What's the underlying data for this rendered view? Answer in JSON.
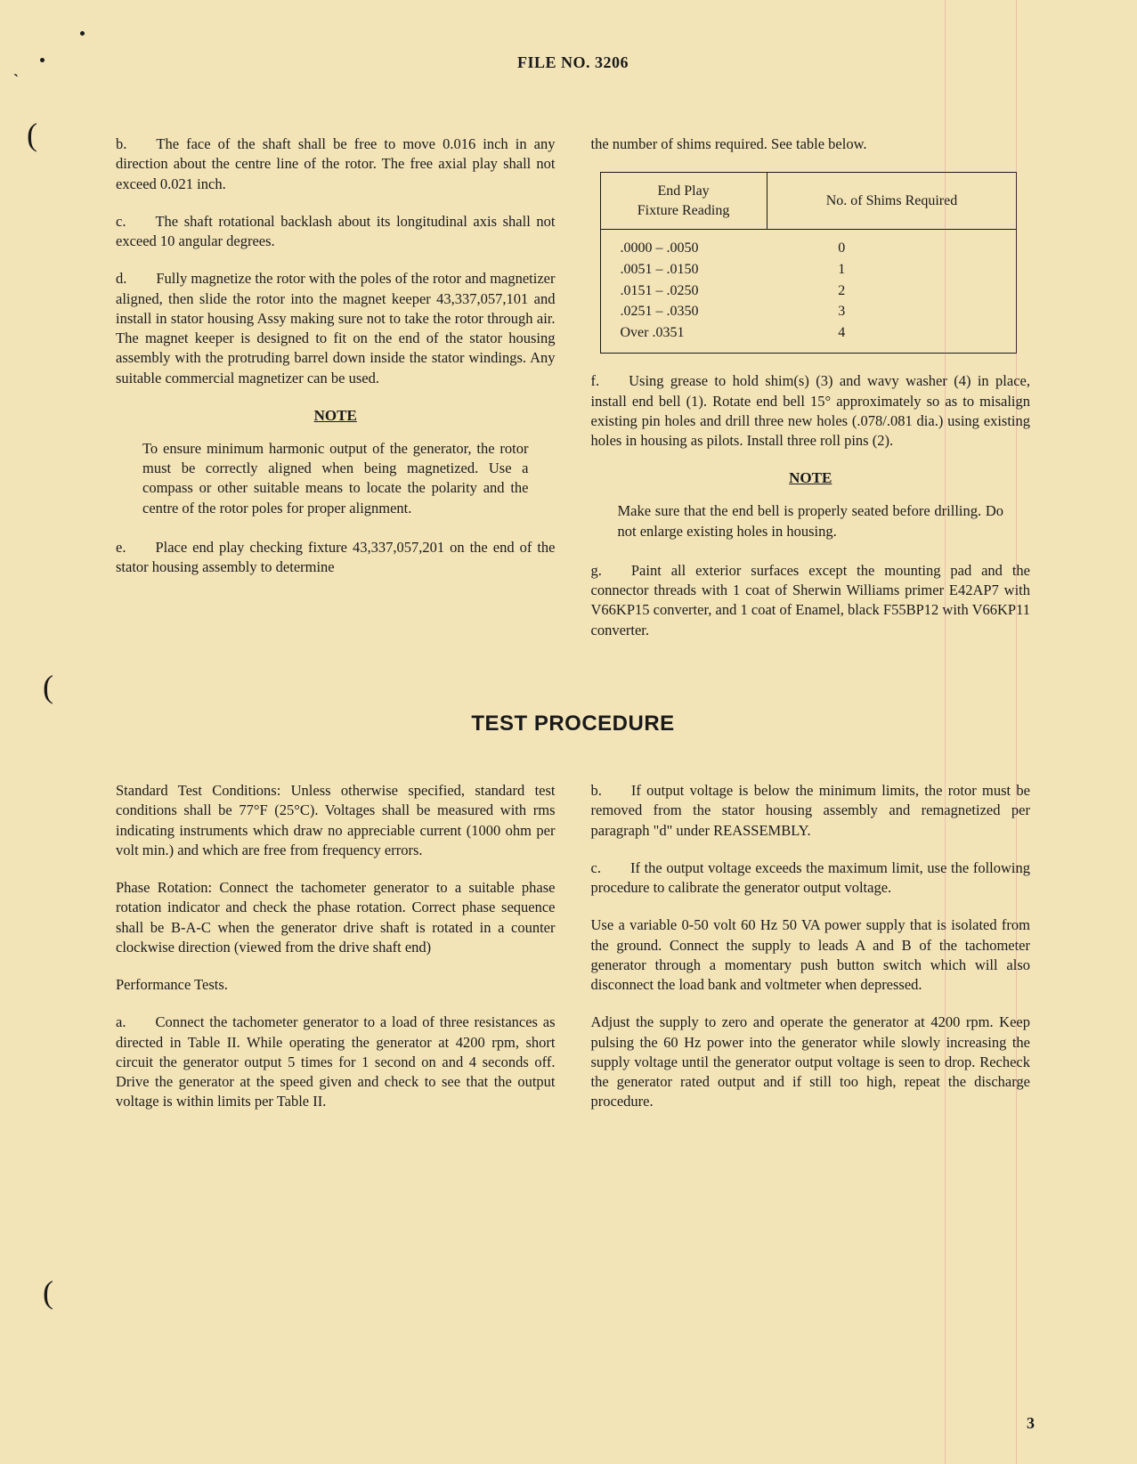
{
  "header": {
    "text": "FILE NO. 3206"
  },
  "page_number": "3",
  "section_title": "TEST PROCEDURE",
  "note_label": "NOTE",
  "col_left": {
    "p_b": "b.  The face of the shaft shall be free to move 0.016 inch in any direction about the centre line of the rotor. The free axial play shall not exceed 0.021 inch.",
    "p_c": "c.  The shaft rotational backlash about its longitudinal axis shall not exceed 10 angular degrees.",
    "p_d": "d.  Fully magnetize the rotor with the poles of the rotor and magnetizer aligned, then slide the rotor into the magnet keeper 43,337,057,101 and install in stator housing Assy making sure not to take the rotor through air. The magnet keeper is designed to fit on the end of the stator housing assembly with the protruding barrel down inside the stator windings. Any suitable commercial magnetizer can be used.",
    "note": "To ensure minimum harmonic output of the generator, the rotor must be correctly aligned when being magnetized. Use a compass or other suitable means to locate the polarity and the centre of the rotor poles for proper alignment.",
    "p_e": "e.  Place end play checking fixture 43,337,057,201 on the end of the stator housing assembly to determine"
  },
  "col_right": {
    "p_top": "the number of shims required. See table below.",
    "table": {
      "header_col1_line1": "End Play",
      "header_col1_line2": "Fixture Reading",
      "header_col2": "No. of Shims Required",
      "rows": [
        {
          "range": ".0000 – .0050",
          "shims": "0"
        },
        {
          "range": ".0051 – .0150",
          "shims": "1"
        },
        {
          "range": ".0151 – .0250",
          "shims": "2"
        },
        {
          "range": ".0251 – .0350",
          "shims": "3"
        },
        {
          "range": "Over .0351",
          "shims": "4"
        }
      ]
    },
    "p_f": "f.  Using grease to hold shim(s) (3) and wavy washer (4) in place, install end bell (1). Rotate end bell 15° approximately so as to misalign existing pin holes and drill three new holes (.078/.081 dia.) using existing holes in housing as pilots. Install three roll pins (2).",
    "note": "Make sure that the end bell is properly seated before drilling. Do not enlarge existing holes in housing.",
    "p_g": "g.  Paint all exterior surfaces except the mounting pad and the connector threads with 1 coat of Sherwin Williams primer E42AP7 with V66KP15 converter, and 1 coat of Enamel, black F55BP12 with V66KP11 converter."
  },
  "test_left": {
    "p1": "Standard Test Conditions: Unless otherwise specified, standard test conditions shall be 77°F (25°C). Voltages shall be measured with rms indicating instruments which draw no appreciable current (1000 ohm per volt min.) and which are free from frequency errors.",
    "p2": "Phase Rotation: Connect the tachometer generator to a suitable phase rotation indicator and check the phase rotation. Correct phase sequence shall be B-A-C when the generator drive shaft is rotated in a counter clockwise direction (viewed from the drive shaft end)",
    "p3": "Performance Tests.",
    "p_a": "a.  Connect the tachometer generator to a load of three resistances as directed in Table II. While operating the generator at 4200 rpm, short circuit the generator output 5 times for 1 second on and 4 seconds off. Drive the generator at the speed given and check to see that the output voltage is within limits per Table II."
  },
  "test_right": {
    "p_b": "b.  If output voltage is below the minimum limits, the rotor must be removed from the stator housing assembly and remagnetized per paragraph \"d\" under REASSEMBLY.",
    "p_c": "c.  If the output voltage exceeds the maximum limit, use the following procedure to calibrate the generator output voltage.",
    "p2": "Use a variable 0-50 volt 60 Hz 50 VA power supply that is isolated from the ground. Connect the supply to leads A and B of the tachometer generator through a momentary push button switch which will also disconnect the load bank and voltmeter when depressed.",
    "p3": "Adjust the supply to zero and operate the generator at 4200 rpm. Keep pulsing the 60 Hz power into the generator while slowly increasing the supply voltage until the generator output voltage is seen to drop. Recheck the generator rated output and if still too high, repeat the discharge procedure."
  }
}
